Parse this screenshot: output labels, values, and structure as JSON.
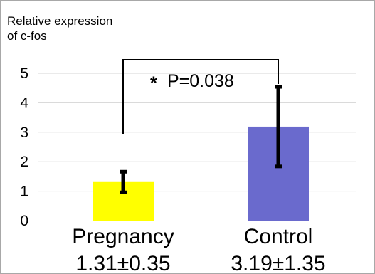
{
  "chart_data": {
    "type": "bar",
    "ylabel_line1": "Relative expression",
    "ylabel_line2": "of c-fos",
    "categories": [
      "Pregnancy",
      "Control"
    ],
    "values": [
      1.31,
      3.19
    ],
    "errors": [
      0.35,
      1.35
    ],
    "value_labels": [
      "1.31±0.35",
      "3.19±1.35"
    ],
    "bar_colors": [
      "#ffff00",
      "#6a6acd"
    ],
    "ylim": [
      0,
      5
    ],
    "yticks": [
      "0",
      "1",
      "2",
      "3",
      "4",
      "5"
    ],
    "grid": true,
    "annotation": {
      "star": "*",
      "text": "P=0.038"
    }
  }
}
